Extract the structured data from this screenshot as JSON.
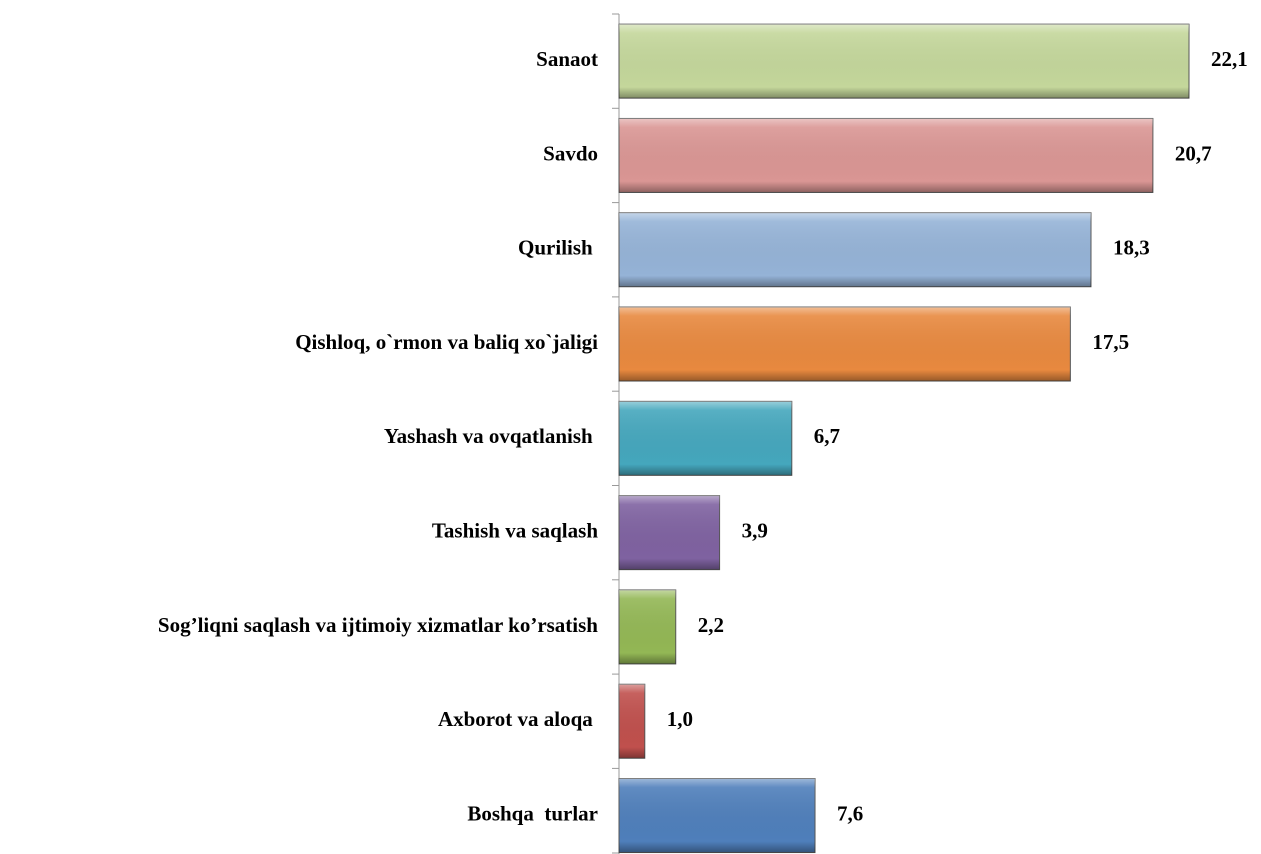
{
  "chart_data": {
    "type": "bar",
    "orientation": "horizontal",
    "categories": [
      "Sanaot",
      "Savdo",
      "Qurilish ",
      "Qishloq, o`rmon va baliq xo`jaligi",
      "Yashash va ovqatlanish ",
      "Tashish va saqlash",
      "Sog’liqni saqlash va ijtimoiy xizmatlar ko’rsatish",
      "Axborot va aloqa ",
      "Boshqa  turlar"
    ],
    "values": [
      22.1,
      20.7,
      18.3,
      17.5,
      6.7,
      3.9,
      2.2,
      1.0,
      7.6
    ],
    "value_labels": [
      "22,1",
      "20,7",
      "18,3",
      "17,5",
      "6,7",
      "3,9",
      "2,2",
      "1,0",
      "7,6"
    ],
    "colors": [
      "#c4d79b",
      "#da9694",
      "#95b3d7",
      "#e8893f",
      "#45a7bd",
      "#7f62a1",
      "#93b755",
      "#c0504d",
      "#4f7fbb"
    ],
    "xlim": [
      0,
      24
    ]
  }
}
